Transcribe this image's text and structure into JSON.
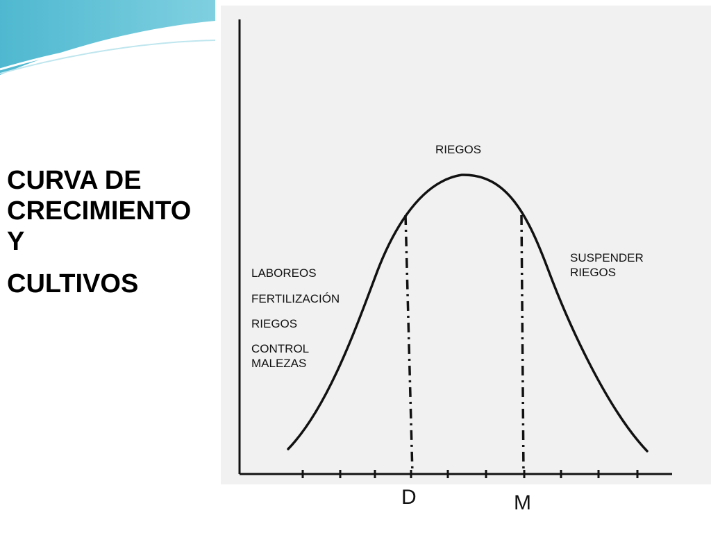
{
  "slide": {
    "title_lines": [
      "CURVA DE CRECIMIENTO",
      "Y",
      "CULTIVOS"
    ]
  },
  "diagram": {
    "top_label": "RIEGOS",
    "left_labels": [
      "LABOREOS",
      "FERTILIZACIÓN",
      "RIEGOS",
      "CONTROL\nMALEZAS"
    ],
    "right_label": "SUSPENDER\nRIEGOS",
    "x_markers": [
      "D",
      "M"
    ]
  },
  "colors": {
    "deco_teal": "#5bc3d8",
    "deco_light": "#bfe6ee",
    "ink": "#111111",
    "paper": "#f1f1f1"
  }
}
